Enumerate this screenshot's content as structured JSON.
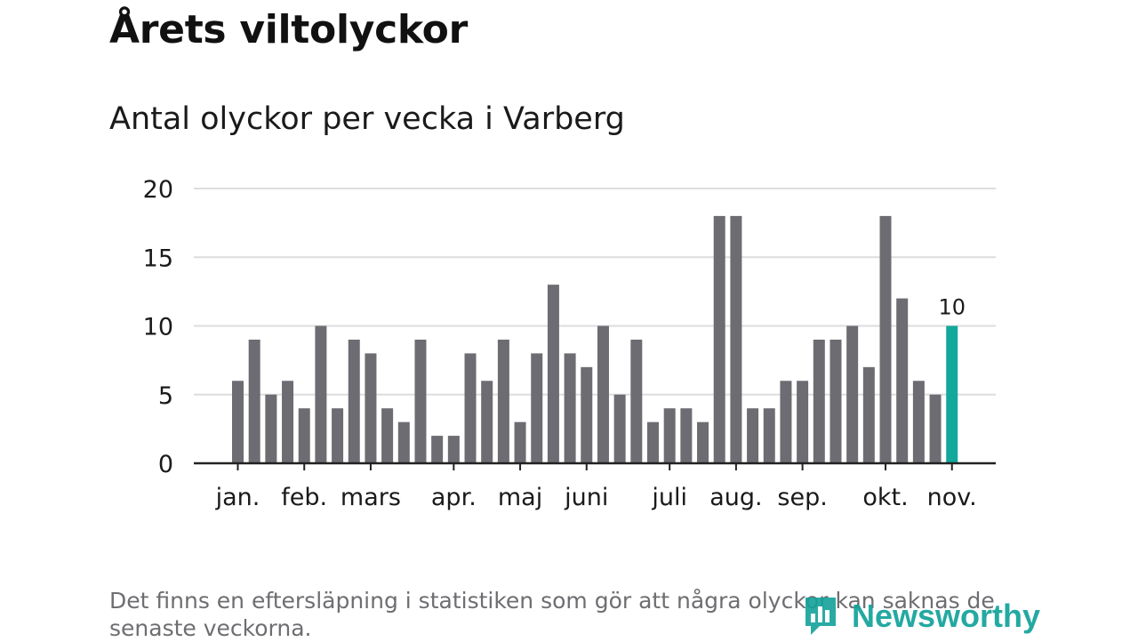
{
  "header": {
    "title": "Årets viltolyckor",
    "subtitle": "Antal olyckor per vecka i Varberg"
  },
  "footnote": "Det finns en eftersläpning i statistiken som gör att några olyckor kan saknas de senaste veckorna.",
  "brand": {
    "name": "Newsworthy",
    "logo_icon": "bar-chart-icon",
    "color": "#12a29a"
  },
  "chart_data": {
    "type": "bar",
    "title": "Antal olyckor per vecka i Varberg",
    "xlabel": "",
    "ylabel": "",
    "ylim": [
      0,
      20
    ],
    "yticks": [
      0,
      5,
      10,
      15,
      20
    ],
    "grid": true,
    "colors": {
      "bar": "#6d6c72",
      "highlight": "#12a89c",
      "grid": "#dddddd",
      "axis": "#222222"
    },
    "values": [
      6,
      9,
      5,
      6,
      4,
      10,
      4,
      9,
      8,
      4,
      3,
      9,
      2,
      2,
      8,
      6,
      9,
      3,
      8,
      13,
      8,
      7,
      10,
      5,
      9,
      3,
      4,
      4,
      3,
      18,
      18,
      4,
      4,
      6,
      6,
      9,
      9,
      10,
      7,
      18,
      12,
      6,
      5,
      10
    ],
    "highlight_index": 43,
    "data_labels": [
      {
        "index": 43,
        "text": "10"
      }
    ],
    "month_labels": [
      {
        "label": "jan.",
        "bar_index": 0
      },
      {
        "label": "feb.",
        "bar_index": 4
      },
      {
        "label": "mars",
        "bar_index": 8
      },
      {
        "label": "apr.",
        "bar_index": 13
      },
      {
        "label": "maj",
        "bar_index": 17
      },
      {
        "label": "juni",
        "bar_index": 21
      },
      {
        "label": "juli",
        "bar_index": 26
      },
      {
        "label": "aug.",
        "bar_index": 30
      },
      {
        "label": "sep.",
        "bar_index": 34
      },
      {
        "label": "okt.",
        "bar_index": 39
      },
      {
        "label": "nov.",
        "bar_index": 43
      }
    ]
  }
}
